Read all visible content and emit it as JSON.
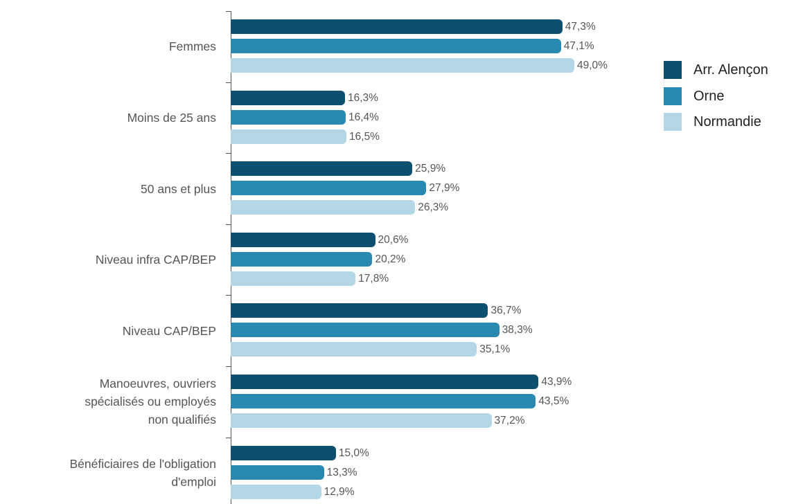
{
  "chart_data": {
    "type": "bar",
    "orientation": "horizontal",
    "categories": [
      "Femmes",
      "Moins de 25 ans",
      "50 ans et plus",
      "Niveau infra CAP/BEP",
      "Niveau CAP/BEP",
      "Manoeuvres, ouvriers\nspécialisés ou employés\nnon qualifiés",
      "Bénéficiaires de l'obligation\nd'emploi"
    ],
    "series": [
      {
        "name": "Arr. Alençon",
        "color": "#0d4f6e",
        "values": [
          47.3,
          16.3,
          25.9,
          20.6,
          36.7,
          43.9,
          15.0
        ],
        "value_labels": [
          "47,3%",
          "16,3%",
          "25,9%",
          "20,6%",
          "36,7%",
          "43,9%",
          "15,0%"
        ]
      },
      {
        "name": "Orne",
        "color": "#2a89b0",
        "values": [
          47.1,
          16.4,
          27.9,
          20.2,
          38.3,
          43.5,
          13.3
        ],
        "value_labels": [
          "47,1%",
          "16,4%",
          "27,9%",
          "20,2%",
          "38,3%",
          "43,5%",
          "13,3%"
        ]
      },
      {
        "name": "Normandie",
        "color": "#b3d7e6",
        "values": [
          49.0,
          16.5,
          26.3,
          17.8,
          35.1,
          37.2,
          12.9
        ],
        "value_labels": [
          "49,0%",
          "16,5%",
          "26,3%",
          "17,8%",
          "35,1%",
          "37,2%",
          "12,9%"
        ]
      }
    ],
    "legend": "right"
  }
}
